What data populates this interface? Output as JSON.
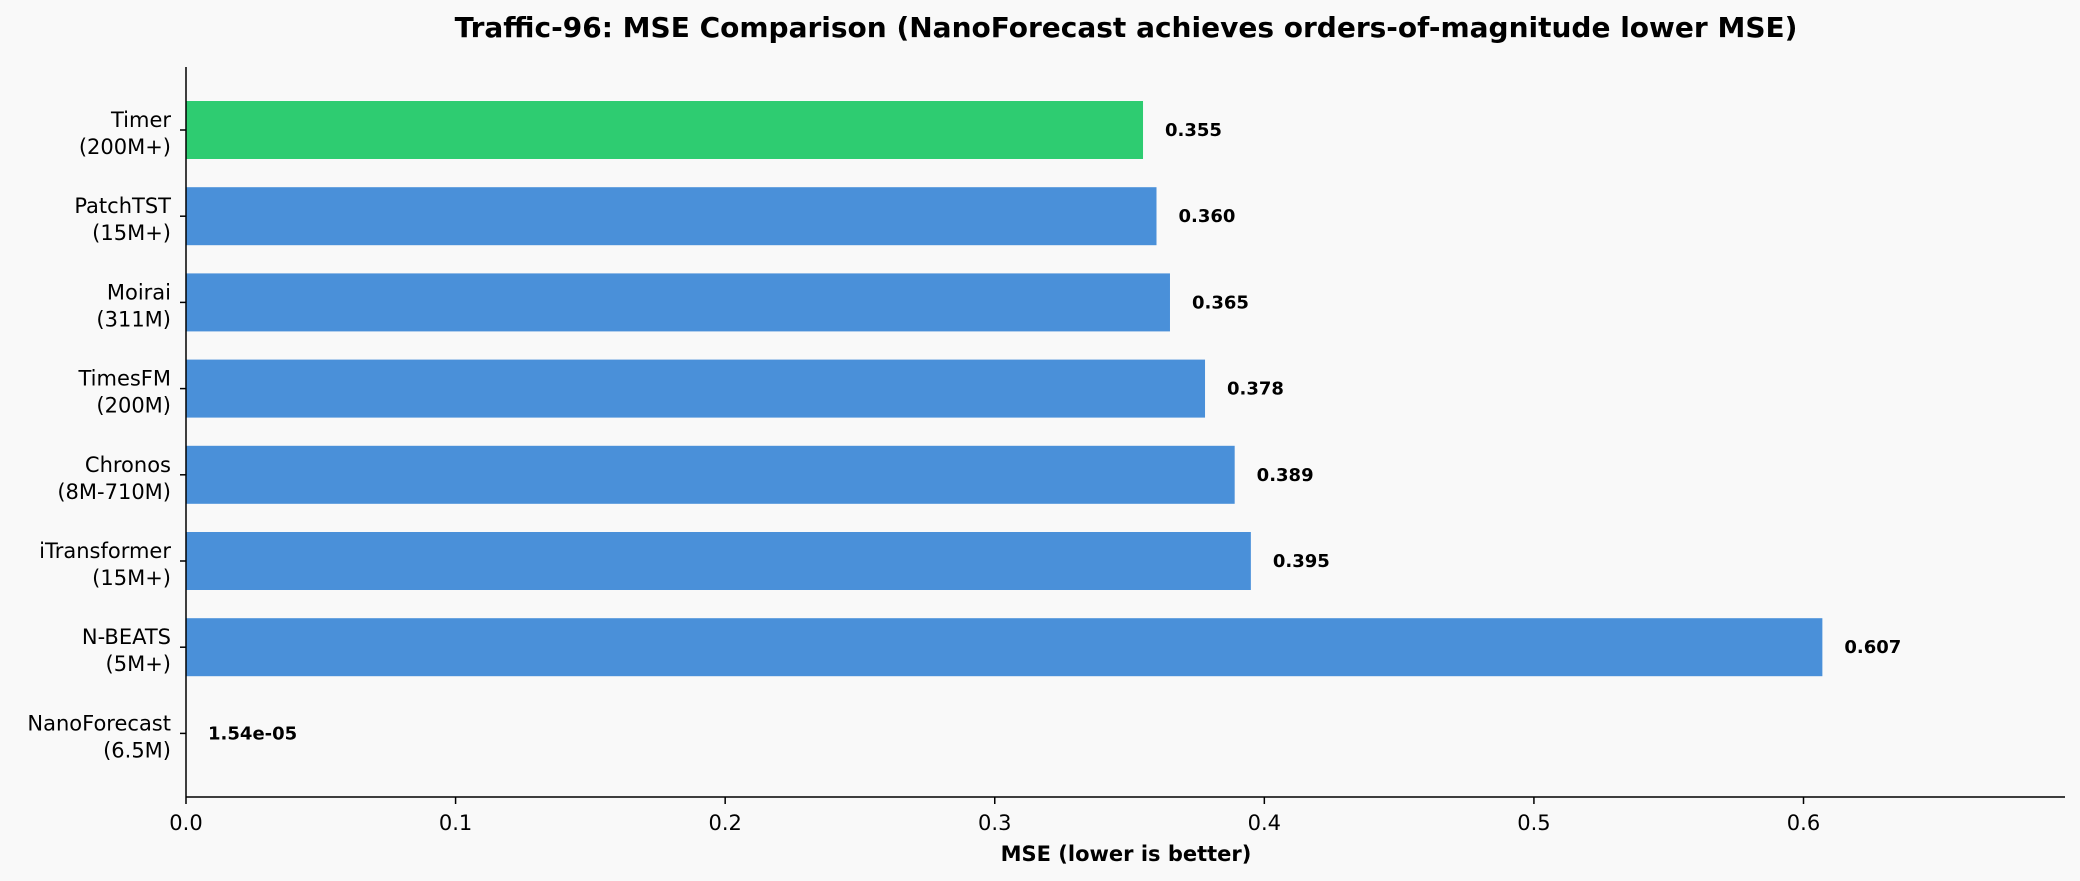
{
  "chart_data": {
    "type": "bar",
    "orientation": "horizontal",
    "title": "Traffic-96: MSE Comparison (NanoForecast achieves orders-of-magnitude lower MSE)",
    "xlabel": "MSE (lower is better)",
    "ylabel": "",
    "xlim": [
      0,
      0.697
    ],
    "xticks": [
      0.0,
      0.1,
      0.2,
      0.3,
      0.4,
      0.5,
      0.6
    ],
    "xtick_labels": [
      "0.0",
      "0.1",
      "0.2",
      "0.3",
      "0.4",
      "0.5",
      "0.6"
    ],
    "grid": false,
    "legend": "none",
    "categories": [
      {
        "name": "Timer",
        "params": "(200M+)",
        "value": 0.355,
        "label": "0.355",
        "color": "#2ecc71"
      },
      {
        "name": "PatchTST",
        "params": "(15M+)",
        "value": 0.36,
        "label": "0.360",
        "color": "#4a90d9"
      },
      {
        "name": "Moirai",
        "params": "(311M)",
        "value": 0.365,
        "label": "0.365",
        "color": "#4a90d9"
      },
      {
        "name": "TimesFM",
        "params": "(200M)",
        "value": 0.378,
        "label": "0.378",
        "color": "#4a90d9"
      },
      {
        "name": "Chronos",
        "params": "(8M-710M)",
        "value": 0.389,
        "label": "0.389",
        "color": "#4a90d9"
      },
      {
        "name": "iTransformer",
        "params": "(15M+)",
        "value": 0.395,
        "label": "0.395",
        "color": "#4a90d9"
      },
      {
        "name": "N-BEATS",
        "params": "(5M+)",
        "value": 0.607,
        "label": "0.607",
        "color": "#4a90d9"
      },
      {
        "name": "NanoForecast",
        "params": "(6.5M)",
        "value": 1.54e-05,
        "label": "1.54e-05",
        "color": "#4a90d9"
      }
    ]
  }
}
